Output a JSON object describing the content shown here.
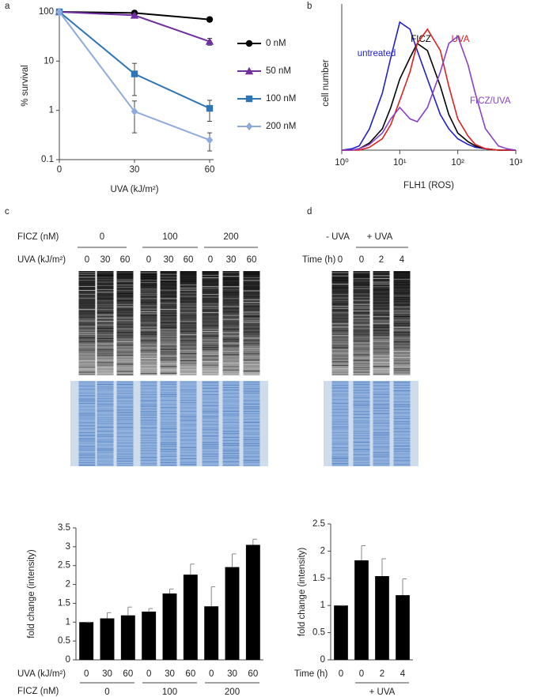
{
  "panel_labels": [
    "a",
    "b",
    "c",
    "d"
  ],
  "chart_data": [
    {
      "type": "line",
      "y_label": "% survival",
      "x_label": "UVA (kJ/m²)",
      "x": [
        0,
        30,
        60
      ],
      "xlim": [
        0,
        60
      ],
      "xticks": [
        0,
        30,
        60
      ],
      "ylog": true,
      "ylim": [
        0.1,
        100
      ],
      "yticks": [
        0.1,
        1,
        10,
        100
      ],
      "series": [
        {
          "name": "0 nM",
          "color": "#000000",
          "marker": "circle",
          "values": [
            100,
            95,
            70
          ]
        },
        {
          "name": "50 nM",
          "color": "#7030a0",
          "marker": "triangle",
          "values": [
            100,
            85,
            25
          ],
          "errors": [
            0,
            8,
            4
          ]
        },
        {
          "name": "100 nM",
          "color": "#2e75b6",
          "marker": "square",
          "values": [
            100,
            5.5,
            1.1
          ],
          "errors": [
            0,
            3.5,
            0.5
          ]
        },
        {
          "name": "200 nM",
          "color": "#8faadc",
          "marker": "diamond",
          "values": [
            100,
            0.95,
            0.25
          ],
          "errors": [
            0,
            0.6,
            0.1
          ]
        }
      ]
    },
    {
      "type": "line",
      "y_label": "cell number",
      "x_label": "FLH1 (ROS)",
      "xlog": true,
      "x": [
        1,
        1.5,
        2,
        3,
        5,
        7,
        10,
        15,
        20,
        30,
        50,
        70,
        100,
        150,
        200,
        300,
        500,
        700,
        1000
      ],
      "xlim": [
        1,
        1000
      ],
      "xticks": [
        {
          "value": 1,
          "label": "10⁰"
        },
        {
          "value": 10,
          "label": "10¹"
        },
        {
          "value": 100,
          "label": "10²"
        },
        {
          "value": 1000,
          "label": "10³"
        }
      ],
      "ylim": [
        0,
        100
      ],
      "series": [
        {
          "name": "untreated",
          "color": "#1f1fcc",
          "values": [
            0,
            1,
            3,
            15,
            40,
            65,
            90,
            85,
            70,
            50,
            25,
            15,
            8,
            4,
            2,
            1,
            0,
            0,
            0
          ]
        },
        {
          "name": "FICZ",
          "color": "#000000",
          "values": [
            0,
            0,
            1,
            5,
            15,
            30,
            50,
            65,
            75,
            70,
            45,
            25,
            12,
            6,
            3,
            1,
            0,
            0,
            0
          ]
        },
        {
          "name": "UVA",
          "color": "#e01f1f",
          "values": [
            0,
            0,
            0,
            2,
            8,
            18,
            35,
            55,
            75,
            85,
            70,
            45,
            22,
            10,
            4,
            1,
            0,
            0,
            0
          ]
        },
        {
          "name": "FICZ/UVA",
          "color": "#8a3fc8",
          "values": [
            0,
            0,
            1,
            4,
            12,
            22,
            30,
            22,
            20,
            30,
            55,
            75,
            80,
            60,
            40,
            15,
            3,
            1,
            0
          ]
        }
      ]
    },
    {
      "type": "bar",
      "y_label": "fold change (intensity)",
      "x_label": "UVA (kJ/m²)",
      "group_label": "FICZ (nM)",
      "categories": [
        "0",
        "30",
        "60",
        "0",
        "30",
        "60",
        "0",
        "30",
        "60"
      ],
      "groups": [
        "0",
        "100",
        "200"
      ],
      "group_of": [
        0,
        0,
        0,
        1,
        1,
        1,
        2,
        2,
        2
      ],
      "values": [
        1,
        1.1,
        1.18,
        1.28,
        1.76,
        2.26,
        1.42,
        2.46,
        3.05
      ],
      "errors": [
        0,
        0.15,
        0.22,
        0.08,
        0.12,
        0.28,
        0.52,
        0.35,
        0.15
      ],
      "color": "#000000",
      "ylim": [
        0,
        3.5
      ],
      "yticks": [
        0,
        0.5,
        1,
        1.5,
        2,
        2.5,
        3,
        3.5
      ]
    },
    {
      "type": "bar",
      "y_label": "fold change (intensity)",
      "x_label": "Time (h)",
      "categories": [
        "0",
        "0",
        "2",
        "4"
      ],
      "groups": [
        "+ UVA"
      ],
      "group_of": [
        null,
        0,
        0,
        0
      ],
      "values": [
        1,
        1.83,
        1.54,
        1.19
      ],
      "errors": [
        0,
        0.27,
        0.32,
        0.3
      ],
      "color": "#000000",
      "ylim": [
        0,
        2.5
      ],
      "yticks": [
        0,
        0.5,
        1,
        1.5,
        2,
        2.5
      ]
    }
  ],
  "gels": [
    {
      "treatment_label": "FICZ (nM)",
      "treatments": [
        "0",
        "100",
        "200"
      ],
      "dose_label": "UVA (kJ/m²)",
      "doses": [
        "0",
        "30",
        "60",
        "0",
        "30",
        "60",
        "0",
        "30",
        "60"
      ]
    },
    {
      "treatments": [
        "- UVA",
        "+ UVA"
      ],
      "dose_label": "Time (h)",
      "doses": [
        "0",
        "0",
        "2",
        "4"
      ]
    }
  ]
}
